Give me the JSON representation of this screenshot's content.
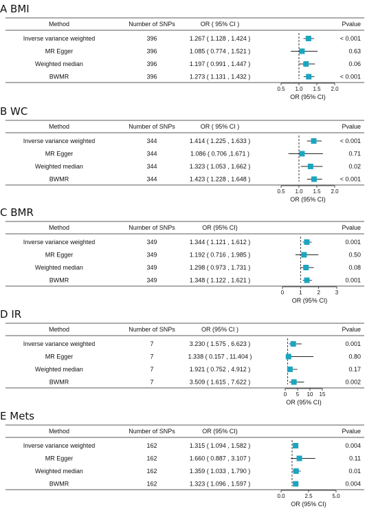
{
  "colors": {
    "marker": "#1ba6c0",
    "text": "#111111"
  },
  "chart_data": [
    {
      "type": "forest",
      "title": "A BMI",
      "headers": {
        "method": "Method",
        "nsnps": "Number of SNPs",
        "or": "OR ( 95% CI )",
        "p": "Pvalue"
      },
      "xlabel": "OR (95% CI)",
      "xlim": [
        0.5,
        2.0
      ],
      "xticks": [
        "0.5",
        "1.0",
        "1.5",
        "2.0"
      ],
      "ref": 1,
      "rows": [
        {
          "method": "Inverse variance weighted",
          "nsnps": "396",
          "or_text": "1.267 ( 1.128 , 1.424 )",
          "p": "< 0.001",
          "or": 1.267,
          "lo": 1.128,
          "hi": 1.424
        },
        {
          "method": "MR Egger",
          "nsnps": "396",
          "or_text": "1.085 ( 0.774 , 1.521 )",
          "p": "0.63",
          "or": 1.085,
          "lo": 0.774,
          "hi": 1.521
        },
        {
          "method": "Weighted median",
          "nsnps": "396",
          "or_text": "1.197 ( 0.991 , 1.447 )",
          "p": "0.06",
          "or": 1.197,
          "lo": 0.991,
          "hi": 1.447
        },
        {
          "method": "BWMR",
          "nsnps": "396",
          "or_text": "1.273 ( 1.131 , 1.432 )",
          "p": "< 0.001",
          "or": 1.273,
          "lo": 1.131,
          "hi": 1.432
        }
      ]
    },
    {
      "type": "forest",
      "title": "B WC",
      "headers": {
        "method": "Method",
        "nsnps": "Number of SNPs",
        "or": "OR ( 95% CI )",
        "p": "Pvalue"
      },
      "xlabel": "OR (95% CI)",
      "xlim": [
        0.5,
        2.0
      ],
      "xticks": [
        "0.5",
        "1.0",
        "1.5",
        "2.0"
      ],
      "ref": 1,
      "rows": [
        {
          "method": "Inverse variance weighted",
          "nsnps": "344",
          "or_text": "1.414 ( 1.225 , 1.633 )",
          "p": "< 0.001",
          "or": 1.414,
          "lo": 1.225,
          "hi": 1.633
        },
        {
          "method": "MR Egger",
          "nsnps": "344",
          "or_text": "1.086 ( 0.706 ,1.671 )",
          "p": "0.71",
          "or": 1.086,
          "lo": 0.706,
          "hi": 1.671
        },
        {
          "method": "Weighted median",
          "nsnps": "344",
          "or_text": "1.323 ( 1.053 , 1.662 )",
          "p": "0.02",
          "or": 1.323,
          "lo": 1.053,
          "hi": 1.662
        },
        {
          "method": "BWMR",
          "nsnps": "344",
          "or_text": "1.423 ( 1.228 , 1.648 )",
          "p": "< 0.001",
          "or": 1.423,
          "lo": 1.228,
          "hi": 1.648
        }
      ]
    },
    {
      "type": "forest",
      "title": "C BMR",
      "headers": {
        "method": "Method",
        "nsnps": "Number of SNPs",
        "or": "OR (95% CI)",
        "p": "Pvalue"
      },
      "xlabel": "OR (95% CI)",
      "xlim": [
        0,
        3
      ],
      "xticks": [
        "0",
        "1",
        "2",
        "3"
      ],
      "ref": 1,
      "rows": [
        {
          "method": "Inverse variance weighted",
          "nsnps": "349",
          "or_text": "1.344 ( 1.121 , 1.612 )",
          "p": "0.001",
          "or": 1.344,
          "lo": 1.121,
          "hi": 1.612
        },
        {
          "method": "MR Egger",
          "nsnps": "349",
          "or_text": "1.192 ( 0.716 , 1.985 )",
          "p": "0.50",
          "or": 1.192,
          "lo": 0.716,
          "hi": 1.985
        },
        {
          "method": "Weighted median",
          "nsnps": "349",
          "or_text": "1.298 ( 0.973 , 1.731 )",
          "p": "0.08",
          "or": 1.298,
          "lo": 0.973,
          "hi": 1.731
        },
        {
          "method": "BWMR",
          "nsnps": "349",
          "or_text": "1.348 ( 1.122 , 1.621 )",
          "p": "0.001",
          "or": 1.348,
          "lo": 1.122,
          "hi": 1.621
        }
      ]
    },
    {
      "type": "forest",
      "title": "D IR",
      "headers": {
        "method": "Method",
        "nsnps": "Number of SNPs",
        "or": "OR (95% CI )",
        "p": "Pvalue"
      },
      "xlabel": "OR (95% CI)",
      "xlim": [
        0,
        15
      ],
      "xticks": [
        "0",
        "5",
        "10",
        "15"
      ],
      "ref": 1,
      "rows": [
        {
          "method": "Inverse variance weighted",
          "nsnps": "7",
          "or_text": "3.230 ( 1.575 , 6.623 )",
          "p": "0.001",
          "or": 3.23,
          "lo": 1.575,
          "hi": 6.623
        },
        {
          "method": "MR Egger",
          "nsnps": "7",
          "or_text": "1.338 ( 0.157 , 11.404 )",
          "p": "0.80",
          "or": 1.338,
          "lo": 0.157,
          "hi": 11.404
        },
        {
          "method": "Weighted median",
          "nsnps": "7",
          "or_text": "1.921 ( 0.752 , 4.912 )",
          "p": "0.17",
          "or": 1.921,
          "lo": 0.752,
          "hi": 4.912
        },
        {
          "method": "BWMR",
          "nsnps": "7",
          "or_text": "3.509 ( 1.615 , 7.622 )",
          "p": "0.002",
          "or": 3.509,
          "lo": 1.615,
          "hi": 7.622
        }
      ]
    },
    {
      "type": "forest",
      "title": "E Mets",
      "headers": {
        "method": "Method",
        "nsnps": "Number of SNPs",
        "or": "OR (95% CI)",
        "p": "Pvalue"
      },
      "xlabel": "OR (95% CI)",
      "xlim": [
        0,
        5
      ],
      "xticks": [
        "0.0",
        "2.5",
        "5.0"
      ],
      "ref": 1,
      "rows": [
        {
          "method": "Inverse variance weighted",
          "nsnps": "162",
          "or_text": "1.315 ( 1.094 , 1.582 )",
          "p": "0.004",
          "or": 1.315,
          "lo": 1.094,
          "hi": 1.582
        },
        {
          "method": "MR Egger",
          "nsnps": "162",
          "or_text": "1.660 ( 0.887 , 3.107 )",
          "p": "0.11",
          "or": 1.66,
          "lo": 0.887,
          "hi": 3.107
        },
        {
          "method": "Weighted median",
          "nsnps": "162",
          "or_text": "1.359 ( 1.033 , 1.790 )",
          "p": "0.01",
          "or": 1.359,
          "lo": 1.033,
          "hi": 1.79
        },
        {
          "method": "BWMR",
          "nsnps": "162",
          "or_text": "1.323 ( 1.096 , 1.597 )",
          "p": "0.004",
          "or": 1.323,
          "lo": 1.096,
          "hi": 1.597
        }
      ]
    }
  ]
}
